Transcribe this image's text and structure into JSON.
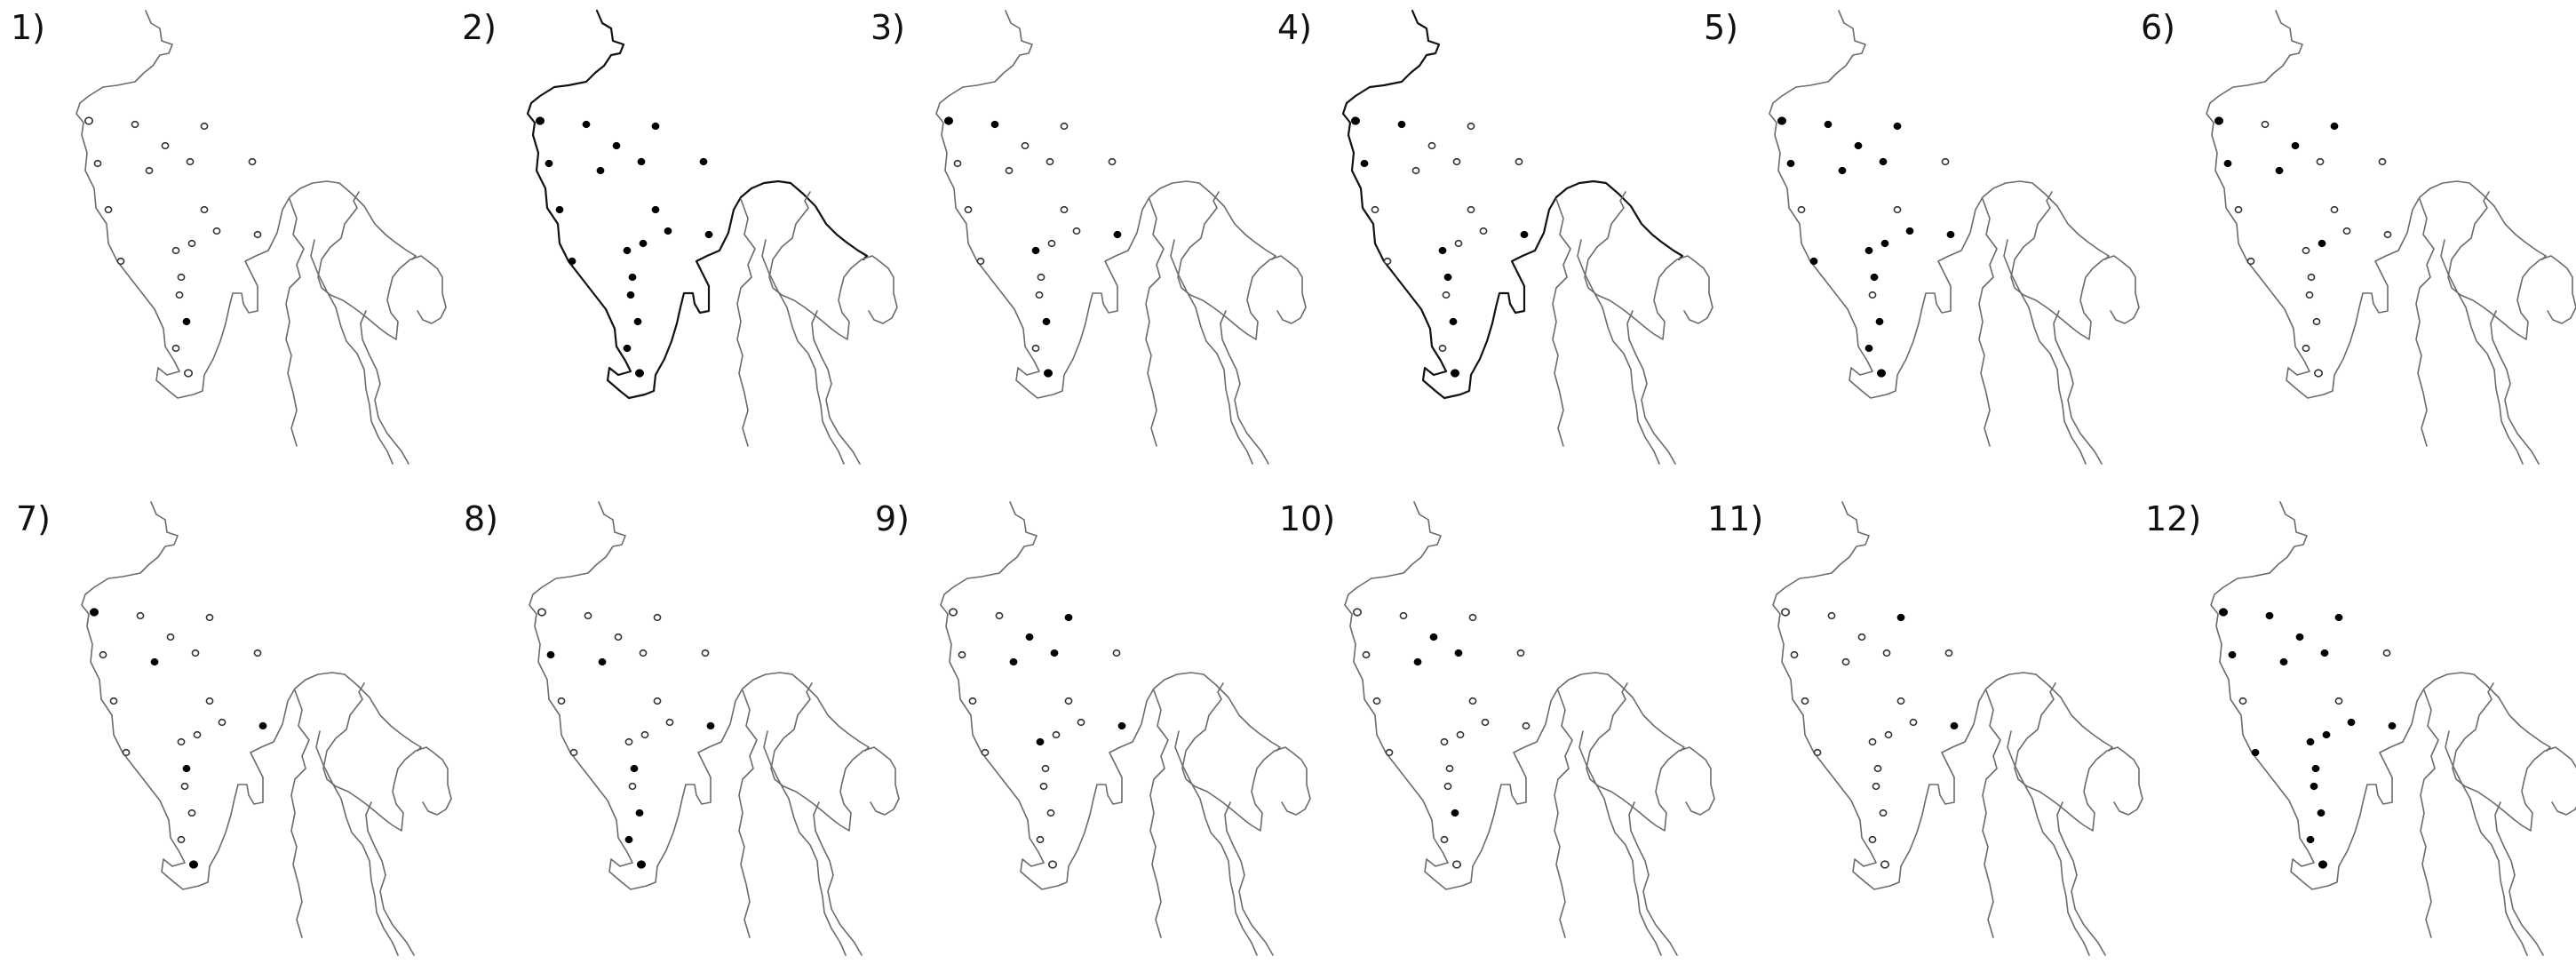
{
  "figure": {
    "panels": [
      {
        "label": "1)",
        "highlight_coast": false,
        "filled_sites": [
          17
        ]
      },
      {
        "label": "2)",
        "highlight_coast": true,
        "filled_sites": [
          0,
          1,
          2,
          3,
          4,
          5,
          6,
          7,
          8,
          9,
          10,
          11,
          12,
          13,
          14,
          15,
          16,
          17,
          18,
          19
        ]
      },
      {
        "label": "3)",
        "highlight_coast": false,
        "filled_sites": [
          0,
          1,
          11,
          13,
          17,
          19
        ]
      },
      {
        "label": "4)",
        "highlight_coast": true,
        "filled_sites": [
          0,
          1,
          6,
          11,
          13,
          15,
          17,
          19
        ]
      },
      {
        "label": "5)",
        "highlight_coast": false,
        "filled_sites": [
          0,
          1,
          2,
          4,
          5,
          6,
          7,
          10,
          11,
          12,
          13,
          14,
          15,
          17,
          18,
          19
        ]
      },
      {
        "label": "6)",
        "highlight_coast": false,
        "filled_sites": [
          0,
          2,
          4,
          6,
          7,
          12
        ]
      },
      {
        "label": "7)",
        "highlight_coast": false,
        "filled_sites": [
          0,
          7,
          11,
          15,
          19
        ]
      },
      {
        "label": "8)",
        "highlight_coast": false,
        "filled_sites": [
          6,
          7,
          11,
          15,
          17,
          18,
          19
        ]
      },
      {
        "label": "9)",
        "highlight_coast": false,
        "filled_sites": [
          2,
          4,
          5,
          7,
          11,
          13
        ]
      },
      {
        "label": "10)",
        "highlight_coast": false,
        "filled_sites": [
          4,
          5,
          7,
          17
        ]
      },
      {
        "label": "11)",
        "highlight_coast": false,
        "filled_sites": [
          2,
          11
        ]
      },
      {
        "label": "12)",
        "highlight_coast": false,
        "filled_sites": [
          0,
          1,
          2,
          4,
          5,
          6,
          7,
          10,
          11,
          12,
          13,
          14,
          15,
          16,
          17,
          18,
          19
        ]
      }
    ]
  }
}
